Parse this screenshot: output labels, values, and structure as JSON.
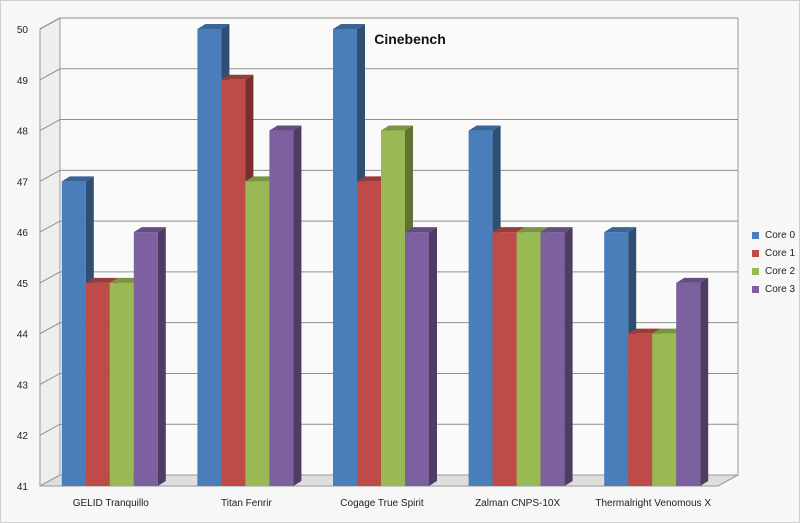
{
  "chart_data": {
    "type": "bar",
    "title": "Cinebench",
    "xlabel": "",
    "ylabel": "",
    "ylim": [
      41,
      50
    ],
    "yticks": [
      41,
      42,
      43,
      44,
      45,
      46,
      47,
      48,
      49,
      50
    ],
    "categories": [
      "GELID Tranquillo",
      "Titan Fenrir",
      "Cogage True Spirit",
      "Zalman CNPS-10X",
      "Thermalright Venomous X"
    ],
    "series": [
      {
        "name": "Core 0",
        "color": "#4a7ebb",
        "values": [
          47,
          50,
          50,
          48,
          46
        ]
      },
      {
        "name": "Core 1",
        "color": "#be4b48",
        "values": [
          45,
          49,
          47,
          46,
          44
        ]
      },
      {
        "name": "Core 2",
        "color": "#98b954",
        "values": [
          45,
          47,
          48,
          46,
          44
        ]
      },
      {
        "name": "Core 3",
        "color": "#7d60a0",
        "values": [
          46,
          48,
          46,
          46,
          45
        ]
      }
    ],
    "grid": true,
    "legend_position": "right"
  }
}
